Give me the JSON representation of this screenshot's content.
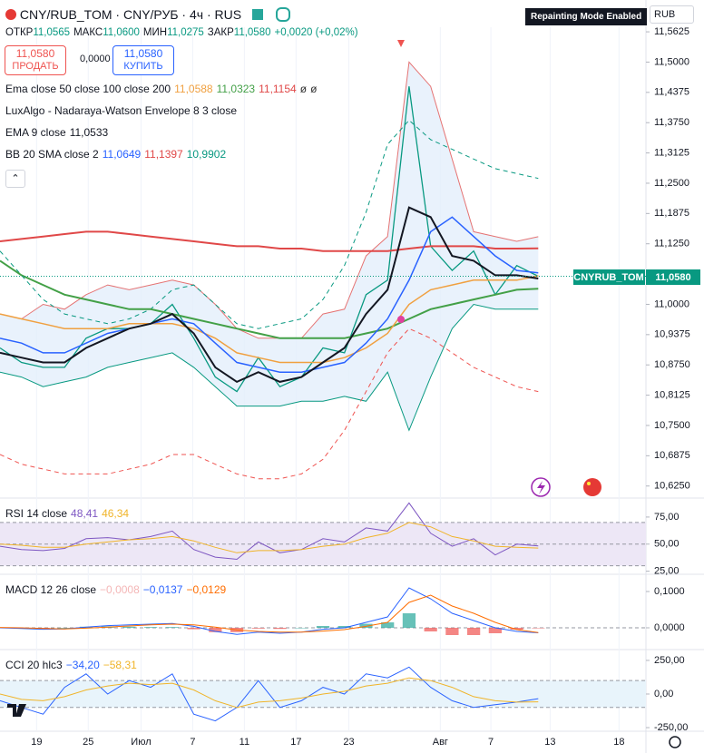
{
  "header": {
    "symbol": "CNY/RUB_TOM · CNY/РУБ · 4ч · RUS",
    "badge": "Repainting Mode Enabled",
    "currency": "RUB"
  },
  "ohlc": [
    {
      "label": "ОТКР",
      "value": "11,0565"
    },
    {
      "label": "МАКС",
      "value": "11,0600"
    },
    {
      "label": "МИН",
      "value": "11,0275"
    },
    {
      "label": "ЗАКР",
      "value": "11,0580"
    }
  ],
  "change": "+0,0020 (+0,02%)",
  "trade": {
    "sell_price": "11,0580",
    "sell": "ПРОДАТЬ",
    "spread": "0,0000",
    "buy_price": "11,0580",
    "buy": "КУПИТЬ"
  },
  "price_label": {
    "name": "CNYRUB_TOM",
    "value": "11,0580"
  },
  "chart_data": [
    {
      "type": "line",
      "legend": [
        {
          "title": "Ema close 50 close 100 close 200",
          "values": [
            "11,0588",
            "11,0323",
            "11,1154",
            "ø",
            "ø"
          ],
          "colors": [
            "#f0a040",
            "#43a047",
            "#e04848",
            "#333333",
            "#333333"
          ]
        },
        {
          "title": "LuxAlgo - Nadaraya-Watson Envelope 8 3 close",
          "values": [],
          "colors": []
        },
        {
          "title": "EMA 9 close",
          "values": [
            "11,0533"
          ],
          "colors": [
            "#131722"
          ]
        },
        {
          "title": "BB 20 SMA close 2",
          "values": [
            "11,0649",
            "11,1397",
            "10,9902"
          ],
          "colors": [
            "#2962ff",
            "#e04848",
            "#089981"
          ]
        }
      ],
      "x": [
        0,
        2,
        4,
        6,
        8,
        10,
        12,
        14,
        16,
        18,
        20,
        22,
        24,
        26,
        28,
        30,
        32,
        34,
        36,
        38,
        40,
        42,
        44,
        46,
        48,
        50
      ],
      "xlim": [
        0,
        60
      ],
      "ylim": [
        10.602,
        11.572
      ],
      "yticks": [
        {
          "value": 11.5625,
          "label": "11,5625"
        },
        {
          "value": 11.5,
          "label": "11,5000"
        },
        {
          "value": 11.4375,
          "label": "11,4375"
        },
        {
          "value": 11.375,
          "label": "11,3750"
        },
        {
          "value": 11.3125,
          "label": "11,3125"
        },
        {
          "value": 11.25,
          "label": "11,2500"
        },
        {
          "value": 11.1875,
          "label": "11,1875"
        },
        {
          "value": 11.125,
          "label": "11,1250"
        },
        {
          "value": 11.0,
          "label": "11,0000"
        },
        {
          "value": 10.9375,
          "label": "10,9375"
        },
        {
          "value": 10.875,
          "label": "10,8750"
        },
        {
          "value": 10.8125,
          "label": "10,8125"
        },
        {
          "value": 10.75,
          "label": "10,7500"
        },
        {
          "value": 10.6875,
          "label": "10,6875"
        },
        {
          "value": 10.625,
          "label": "10,6250"
        }
      ],
      "series": [
        {
          "color": "#089981",
          "width": 1.3,
          "values": [
            10.91,
            10.88,
            10.87,
            10.87,
            10.93,
            10.95,
            10.95,
            10.96,
            11.0,
            10.93,
            10.85,
            10.82,
            10.89,
            10.83,
            10.85,
            10.91,
            10.9,
            11.02,
            11.05,
            11.45,
            11.12,
            11.07,
            11.11,
            11.02,
            11.08,
            11.058
          ]
        },
        {
          "color": "#e57373",
          "width": 1,
          "fill": "#e3effb",
          "values": [
            10.98,
            10.97,
            11.0,
            10.99,
            11.02,
            11.04,
            11.03,
            11.04,
            11.05,
            11.04,
            11.0,
            10.95,
            10.93,
            10.93,
            10.93,
            10.98,
            10.99,
            11.1,
            11.14,
            11.5,
            11.45,
            11.3,
            11.15,
            11.14,
            11.13,
            11.1397
          ]
        },
        {
          "color": "#089981",
          "width": 1,
          "values": [
            10.86,
            10.85,
            10.83,
            10.84,
            10.85,
            10.87,
            10.88,
            10.89,
            10.9,
            10.87,
            10.83,
            10.79,
            10.79,
            10.79,
            10.8,
            10.8,
            10.81,
            10.8,
            10.86,
            10.74,
            10.85,
            10.95,
            11.0,
            10.99,
            10.99,
            10.9902
          ]
        },
        {
          "color": "#089981",
          "width": 1,
          "dashed": true,
          "values": [
            11.11,
            11.06,
            11.01,
            10.98,
            10.97,
            10.96,
            10.97,
            10.99,
            11.03,
            11.04,
            11.0,
            10.96,
            10.95,
            10.96,
            10.97,
            11.01,
            11.08,
            11.19,
            11.33,
            11.38,
            11.34,
            11.32,
            11.3,
            11.28,
            11.27,
            11.26
          ]
        },
        {
          "color": "#ef5350",
          "width": 1,
          "dashed": true,
          "values": [
            10.69,
            10.67,
            10.66,
            10.65,
            10.65,
            10.65,
            10.66,
            10.67,
            10.69,
            10.69,
            10.67,
            10.65,
            10.64,
            10.64,
            10.65,
            10.68,
            10.74,
            10.82,
            10.9,
            10.95,
            10.93,
            10.9,
            10.87,
            10.85,
            10.83,
            10.82
          ]
        },
        {
          "color": "#e04848",
          "width": 2,
          "values": [
            11.13,
            11.135,
            11.14,
            11.145,
            11.15,
            11.15,
            11.145,
            11.14,
            11.135,
            11.13,
            11.125,
            11.12,
            11.12,
            11.115,
            11.115,
            11.11,
            11.11,
            11.11,
            11.11,
            11.115,
            11.12,
            11.12,
            11.12,
            11.115,
            11.115,
            11.1154
          ]
        },
        {
          "color": "#43a047",
          "width": 2,
          "values": [
            11.09,
            11.06,
            11.04,
            11.02,
            11.01,
            11.0,
            10.99,
            10.99,
            10.98,
            10.97,
            10.96,
            10.95,
            10.94,
            10.93,
            10.93,
            10.93,
            10.93,
            10.94,
            10.95,
            10.97,
            10.99,
            11.0,
            11.01,
            11.02,
            11.03,
            11.0323
          ]
        },
        {
          "color": "#f0a040",
          "width": 1.5,
          "values": [
            10.98,
            10.97,
            10.96,
            10.95,
            10.95,
            10.95,
            10.96,
            10.96,
            10.96,
            10.95,
            10.93,
            10.9,
            10.89,
            10.88,
            10.88,
            10.88,
            10.89,
            10.91,
            10.94,
            11.0,
            11.03,
            11.04,
            11.05,
            11.05,
            11.05,
            11.0588
          ]
        },
        {
          "color": "#2962ff",
          "width": 1.5,
          "values": [
            10.93,
            10.92,
            10.9,
            10.9,
            10.92,
            10.94,
            10.95,
            10.96,
            10.97,
            10.96,
            10.92,
            10.88,
            10.87,
            10.86,
            10.86,
            10.87,
            10.88,
            10.92,
            10.97,
            11.05,
            11.15,
            11.18,
            11.14,
            11.1,
            11.07,
            11.0649
          ]
        },
        {
          "color": "#131722",
          "width": 2,
          "values": [
            10.9,
            10.89,
            10.88,
            10.88,
            10.91,
            10.93,
            10.95,
            10.96,
            10.98,
            10.94,
            10.87,
            10.84,
            10.86,
            10.84,
            10.85,
            10.88,
            10.91,
            10.98,
            11.03,
            11.2,
            11.18,
            11.1,
            11.09,
            11.06,
            11.06,
            11.0533
          ]
        }
      ]
    },
    {
      "type": "line",
      "legend": [
        {
          "title": "RSI 14 close",
          "values": [
            "48,41",
            "46,34"
          ],
          "colors": [
            "#7e57c2",
            "#f0b429"
          ]
        }
      ],
      "x": [
        0,
        2,
        4,
        6,
        8,
        10,
        12,
        14,
        16,
        18,
        20,
        22,
        24,
        26,
        28,
        30,
        32,
        34,
        36,
        38,
        40,
        42,
        44,
        46,
        48,
        50
      ],
      "xlim": [
        0,
        60
      ],
      "ylim": [
        23,
        90
      ],
      "yticks": [
        {
          "value": 75,
          "label": "75,00"
        },
        {
          "value": 50,
          "label": "50,00"
        },
        {
          "value": 25,
          "label": "25,00"
        }
      ],
      "band": [
        30,
        70
      ],
      "band_color": "#ede7f6",
      "hlines": [
        70,
        50,
        30
      ],
      "series": [
        {
          "color": "#7e57c2",
          "width": 1,
          "values": [
            48,
            45,
            44,
            46,
            55,
            56,
            54,
            57,
            62,
            45,
            38,
            36,
            52,
            42,
            45,
            55,
            52,
            65,
            62,
            88,
            60,
            48,
            55,
            40,
            50,
            48.41
          ]
        },
        {
          "color": "#f0b429",
          "width": 1,
          "values": [
            50,
            49,
            47,
            47,
            50,
            52,
            54,
            55,
            57,
            53,
            47,
            42,
            44,
            44,
            45,
            48,
            50,
            56,
            60,
            70,
            66,
            57,
            53,
            48,
            47,
            46.34
          ]
        }
      ]
    },
    {
      "type": "line",
      "legend": [
        {
          "title": "MACD 12 26 close",
          "values": [
            "−0,0008",
            "−0,0137",
            "−0,0129"
          ],
          "colors": [
            "#f4b6b6",
            "#2962ff",
            "#ff6d00"
          ]
        }
      ],
      "x": [
        0,
        2,
        4,
        6,
        8,
        10,
        12,
        14,
        16,
        18,
        20,
        22,
        24,
        26,
        28,
        30,
        32,
        34,
        36,
        38,
        40,
        42,
        44,
        46,
        48,
        50
      ],
      "xlim": [
        0,
        60
      ],
      "ylim": [
        -0.0575,
        0.1425
      ],
      "yticks": [
        {
          "value": 0.1,
          "label": "0,1000"
        },
        {
          "value": 0,
          "label": "0,0000"
        }
      ],
      "hlines": [
        0
      ],
      "histogram": {
        "up_color": "#26a69a",
        "down_color": "#ef5350",
        "values": [
          -0.001,
          -0.002,
          -0.002,
          0,
          0.003,
          0.004,
          0.003,
          0.002,
          0.002,
          -0.004,
          -0.012,
          -0.012,
          -0.002,
          -0.003,
          0,
          0.005,
          0.005,
          0.011,
          0.015,
          0.04,
          -0.01,
          -0.02,
          -0.02,
          -0.015,
          -0.005,
          -0.0008
        ]
      },
      "series": [
        {
          "color": "#2962ff",
          "width": 1,
          "values": [
            0,
            -0.002,
            -0.004,
            -0.003,
            0.002,
            0.006,
            0.008,
            0.01,
            0.012,
            0.004,
            -0.01,
            -0.018,
            -0.012,
            -0.015,
            -0.012,
            -0.004,
            0,
            0.015,
            0.03,
            0.11,
            0.08,
            0.04,
            0.02,
            0,
            -0.01,
            -0.0137
          ]
        },
        {
          "color": "#ff6d00",
          "width": 1,
          "values": [
            0.001,
            0,
            -0.002,
            -0.003,
            -0.001,
            0.002,
            0.005,
            0.008,
            0.01,
            0.008,
            0.002,
            -0.006,
            -0.01,
            -0.012,
            -0.012,
            -0.009,
            -0.005,
            0.004,
            0.015,
            0.07,
            0.09,
            0.06,
            0.04,
            0.015,
            -0.005,
            -0.0129
          ]
        }
      ]
    },
    {
      "type": "line",
      "legend": [
        {
          "title": "CCI 20 hlc3",
          "values": [
            "−34,20",
            "−58,31"
          ],
          "colors": [
            "#2962ff",
            "#f0b429"
          ]
        }
      ],
      "x": [
        0,
        2,
        4,
        6,
        8,
        10,
        12,
        14,
        16,
        18,
        20,
        22,
        24,
        26,
        28,
        30,
        32,
        34,
        36,
        38,
        40,
        42,
        44,
        46,
        48,
        50
      ],
      "xlim": [
        0,
        60
      ],
      "xticks": [
        {
          "value": 3.4,
          "label": "19"
        },
        {
          "value": 8.2,
          "label": "25"
        },
        {
          "value": 13.1,
          "label": "Июл"
        },
        {
          "value": 17.9,
          "label": "7"
        },
        {
          "value": 22.7,
          "label": "11"
        },
        {
          "value": 27.5,
          "label": "17"
        },
        {
          "value": 32.4,
          "label": "23"
        },
        {
          "value": 40.9,
          "label": "Авг"
        },
        {
          "value": 45.6,
          "label": "7"
        },
        {
          "value": 51.1,
          "label": "13"
        },
        {
          "value": 57.5,
          "label": "18"
        }
      ],
      "ylim": [
        -270,
        317
      ],
      "yticks": [
        {
          "value": 250,
          "label": "250,00"
        },
        {
          "value": 0,
          "label": "0,00"
        },
        {
          "value": -250,
          "label": "-250,00"
        }
      ],
      "band": [
        -100,
        100
      ],
      "band_color": "#e8f4fb",
      "hlines": [
        100,
        -100
      ],
      "series": [
        {
          "color": "#2962ff",
          "width": 1,
          "values": [
            -50,
            -100,
            -150,
            50,
            150,
            0,
            100,
            50,
            150,
            -150,
            -200,
            -100,
            100,
            -100,
            -50,
            50,
            0,
            150,
            120,
            200,
            50,
            -50,
            -100,
            -80,
            -60,
            -34.2
          ]
        },
        {
          "color": "#f0b429",
          "width": 1,
          "values": [
            0,
            -40,
            -50,
            -20,
            30,
            60,
            80,
            70,
            80,
            30,
            -50,
            -100,
            -60,
            -50,
            -30,
            0,
            20,
            60,
            80,
            120,
            100,
            50,
            -20,
            -50,
            -60,
            -58.31
          ]
        }
      ]
    }
  ]
}
